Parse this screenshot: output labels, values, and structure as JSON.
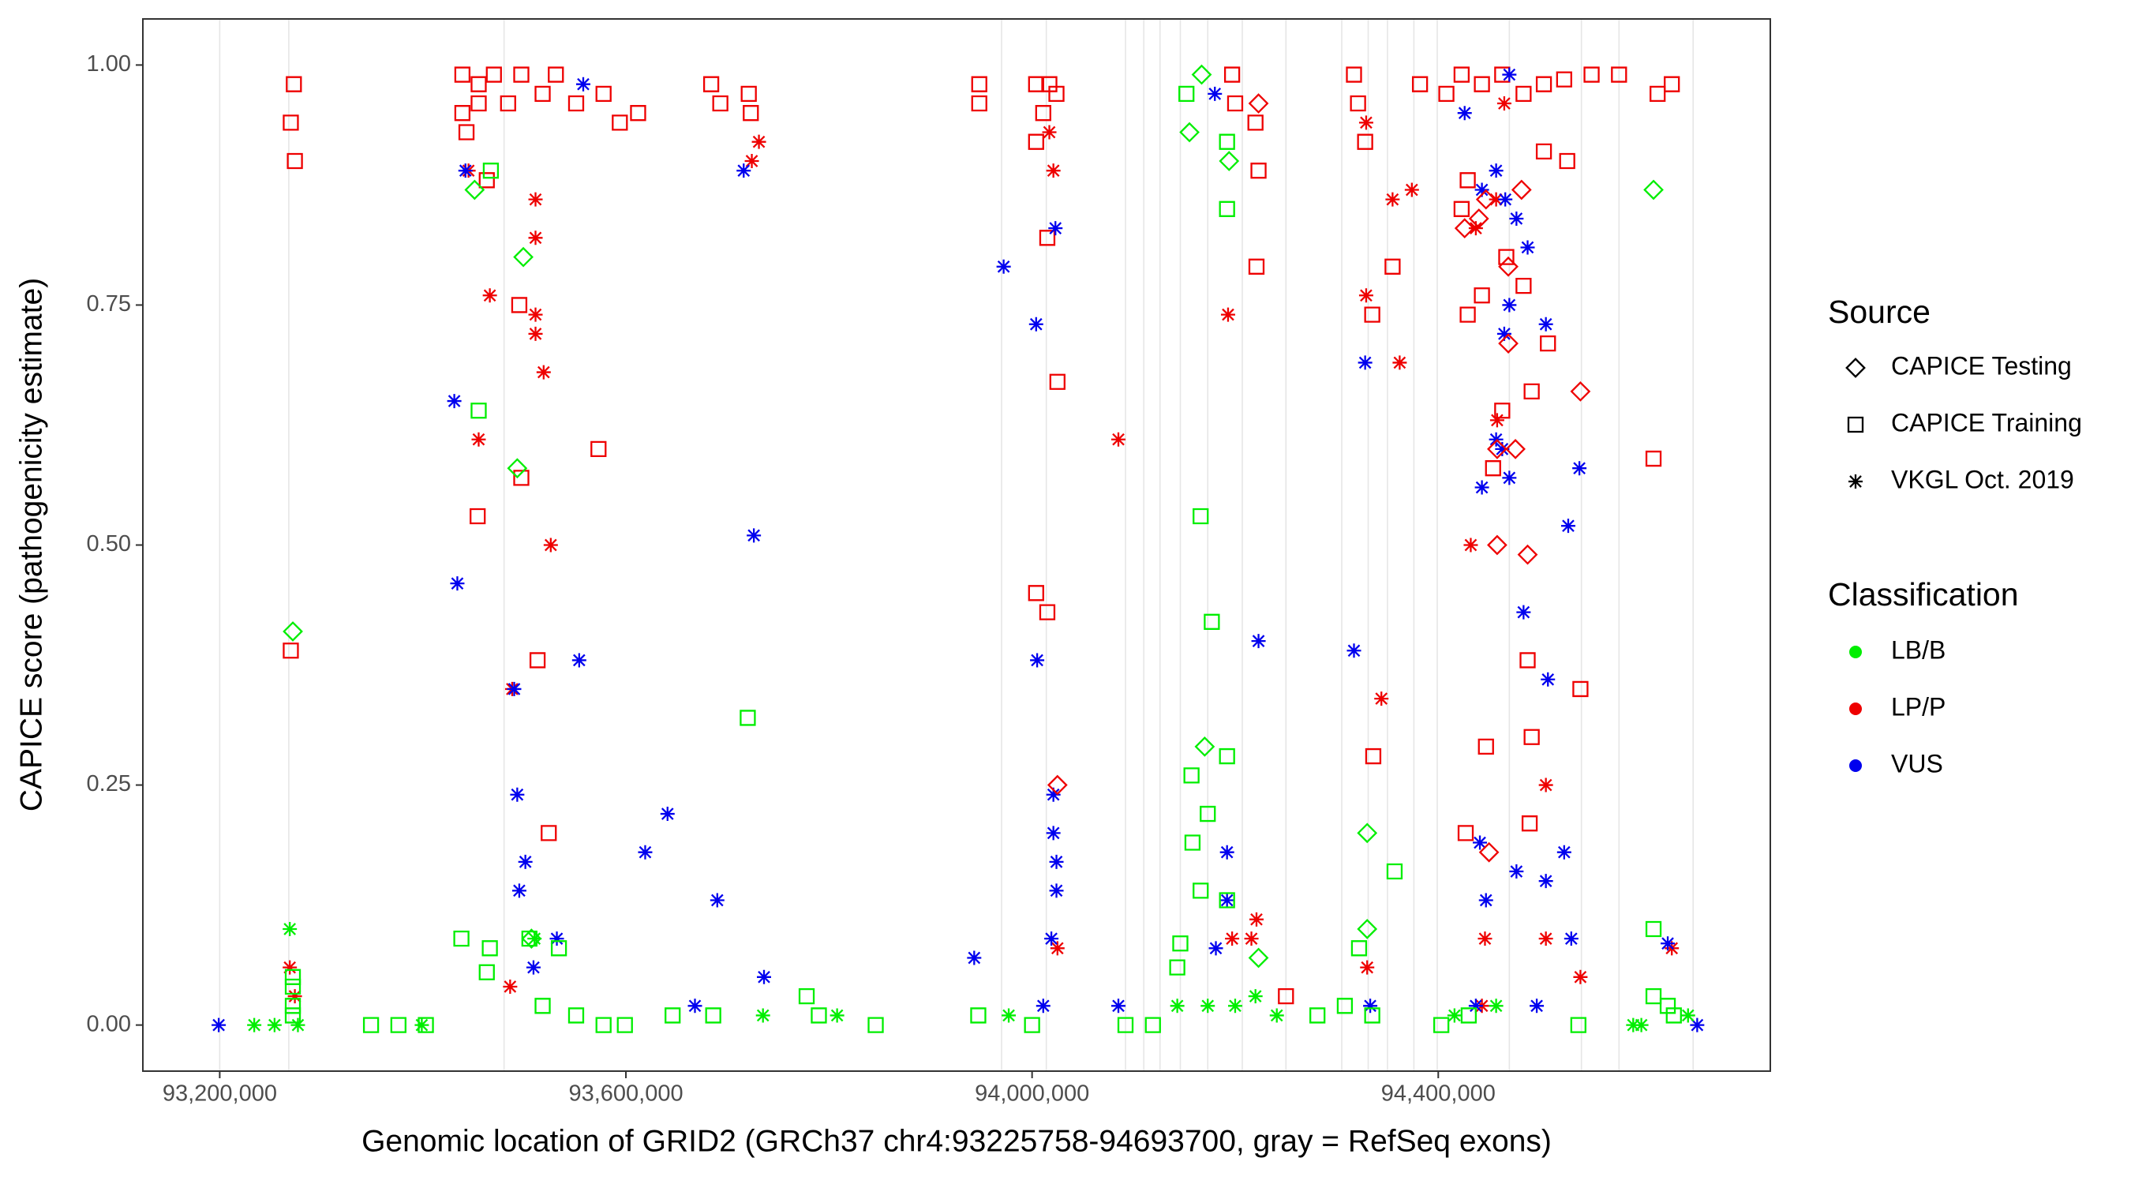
{
  "chart_data": {
    "type": "scatter",
    "x_label": "Genomic location of GRID2 (GRCh37 chr4:93225758-94693700, gray = RefSeq exons)",
    "y_label": "CAPICE score (pathogenicity estimate)",
    "xlim": [
      93124300,
      94727000
    ],
    "ylim": [
      -0.048,
      1.048
    ],
    "xticks": [
      {
        "value": 93200000,
        "label": "93,200,000"
      },
      {
        "value": 93600000,
        "label": "93,600,000"
      },
      {
        "value": 94000000,
        "label": "94,000,000"
      },
      {
        "value": 94400000,
        "label": "94,400,000"
      }
    ],
    "yticks": [
      {
        "value": 0,
        "label": "0.00"
      },
      0.25,
      {
        "value": 0.5,
        "label": "0.50"
      },
      0.75,
      {
        "value": 1,
        "label": "1.00"
      }
    ],
    "exon_color": "#e6e6e6",
    "exons": [
      93200000,
      93268000,
      93480000,
      93970000,
      94014000,
      94092000,
      94110000,
      94126000,
      94146000,
      94173000,
      94207000,
      94250000,
      94305000,
      94331000,
      94350000,
      94376000,
      94399000,
      94470000,
      94541000,
      94578000,
      94651000
    ],
    "legend_position": "right",
    "legend": {
      "shape": {
        "title": "Source",
        "items": [
          {
            "name": "CAPICE Testing",
            "shape": "diamond"
          },
          {
            "name": "CAPICE Training",
            "shape": "square"
          },
          {
            "name": "VKGL Oct. 2019",
            "shape": "asterisk"
          }
        ]
      },
      "color": {
        "title": "Classification",
        "items": [
          {
            "name": "LB/B",
            "color": "#00ee00"
          },
          {
            "name": "LP/P",
            "color": "#ee0000"
          },
          {
            "name": "VUS",
            "color": "#0000ee"
          }
        ]
      }
    },
    "series": [
      {
        "source": "CAPICE Training",
        "classification": "LP/P",
        "x": [
          93273000,
          93270000,
          93274000,
          93270000,
          93439000,
          93455000,
          93470000,
          93497000,
          93531000,
          93439000,
          93455000,
          93484000,
          93518000,
          93551000,
          93578000,
          93612000,
          93443000,
          93463000,
          93495000,
          93497000,
          93454000,
          93573000,
          93513000,
          93524000,
          93684000,
          93693000,
          93721000,
          93723000,
          93594000,
          93948000,
          93948000,
          94004000,
          94017000,
          94004000,
          94011000,
          94024000,
          94004000,
          94015000,
          94025000,
          94015000,
          94197000,
          94200000,
          94220000,
          94223000,
          94221000,
          94317000,
          94321000,
          94328000,
          94355000,
          94336000,
          94335000,
          94382000,
          94408000,
          94423000,
          94443000,
          94463000,
          94484000,
          94504000,
          94524000,
          94551000,
          94578000,
          94429000,
          94423000,
          94429000,
          94443000,
          94463000,
          94454000,
          94467000,
          94484000,
          94492000,
          94488000,
          94492000,
          94508000,
          94504000,
          94527000,
          94540000,
          94490000,
          94427000,
          94447000,
          94612000,
          94616000,
          94630000,
          94250000
        ],
        "values": [
          0.98,
          0.94,
          0.9,
          0.39,
          0.99,
          0.98,
          0.99,
          0.99,
          0.99,
          0.95,
          0.96,
          0.96,
          0.97,
          0.96,
          0.97,
          0.95,
          0.93,
          0.88,
          0.75,
          0.57,
          0.53,
          0.6,
          0.38,
          0.2,
          0.98,
          0.96,
          0.97,
          0.95,
          0.94,
          0.98,
          0.96,
          0.98,
          0.98,
          0.92,
          0.95,
          0.97,
          0.45,
          0.43,
          0.67,
          0.82,
          0.99,
          0.96,
          0.94,
          0.89,
          0.79,
          0.99,
          0.96,
          0.92,
          0.79,
          0.28,
          0.74,
          0.98,
          0.97,
          0.99,
          0.98,
          0.99,
          0.97,
          0.98,
          0.985,
          0.99,
          0.99,
          0.88,
          0.85,
          0.74,
          0.76,
          0.64,
          0.58,
          0.8,
          0.77,
          0.66,
          0.38,
          0.3,
          0.71,
          0.91,
          0.9,
          0.35,
          0.21,
          0.2,
          0.29,
          0.59,
          0.97,
          0.98,
          0.03
        ]
      },
      {
        "source": "VKGL Oct. 2019",
        "classification": "LP/P",
        "x": [
          93269000,
          93274000,
          93445000,
          93455000,
          93466000,
          93488000,
          93511000,
          93511000,
          93511000,
          93511000,
          93519000,
          93526000,
          93486000,
          93724000,
          93731000,
          94085000,
          94017000,
          94021000,
          94025000,
          94193000,
          94197000,
          94216000,
          94221000,
          94329000,
          94329000,
          94330000,
          94344000,
          94355000,
          94374000,
          94362000,
          94432000,
          94437000,
          94446000,
          94458000,
          94506000,
          94506000,
          94540000,
          94630000,
          94457000,
          94443000,
          94465000
        ],
        "values": [
          0.06,
          0.03,
          0.89,
          0.61,
          0.76,
          0.35,
          0.86,
          0.82,
          0.74,
          0.72,
          0.68,
          0.5,
          0.04,
          0.9,
          0.92,
          0.61,
          0.93,
          0.89,
          0.08,
          0.74,
          0.09,
          0.09,
          0.11,
          0.94,
          0.76,
          0.06,
          0.34,
          0.86,
          0.87,
          0.69,
          0.5,
          0.83,
          0.09,
          0.63,
          0.25,
          0.09,
          0.05,
          0.08,
          0.86,
          0.02,
          0.96
        ]
      },
      {
        "source": "VKGL Oct. 2019",
        "classification": "VUS",
        "x": [
          93199000,
          93431000,
          93434000,
          93442000,
          93490000,
          93493000,
          93501000,
          93495000,
          93509000,
          93532000,
          93554000,
          93558000,
          93619000,
          93641000,
          93690000,
          93716000,
          93726000,
          93736000,
          93668000,
          93943000,
          93972000,
          94004000,
          94005000,
          94023000,
          94021000,
          94021000,
          94024000,
          94024000,
          94019000,
          94011000,
          94085000,
          94180000,
          94192000,
          94192000,
          94181000,
          94223000,
          94317000,
          94328000,
          94333000,
          94441000,
          94443000,
          94457000,
          94466000,
          94457000,
          94463000,
          94470000,
          94443000,
          94465000,
          94470000,
          94477000,
          94488000,
          94506000,
          94539000,
          94528000,
          94484000,
          94508000,
          94524000,
          94506000,
          94531000,
          94447000,
          94477000,
          94426000,
          94470000,
          94655000,
          94626000,
          94437000,
          94497000
        ],
        "values": [
          0,
          0.65,
          0.46,
          0.89,
          0.35,
          0.24,
          0.17,
          0.14,
          0.06,
          0.09,
          0.38,
          0.98,
          0.18,
          0.22,
          0.13,
          0.89,
          0.51,
          0.05,
          0.02,
          0.07,
          0.79,
          0.73,
          0.38,
          0.83,
          0.24,
          0.2,
          0.17,
          0.14,
          0.09,
          0.02,
          0.02,
          0.97,
          0.18,
          0.13,
          0.08,
          0.4,
          0.39,
          0.69,
          0.02,
          0.19,
          0.87,
          0.89,
          0.86,
          0.61,
          0.6,
          0.57,
          0.56,
          0.72,
          0.75,
          0.84,
          0.81,
          0.73,
          0.58,
          0.52,
          0.43,
          0.36,
          0.18,
          0.15,
          0.09,
          0.13,
          0.16,
          0.95,
          0.99,
          0,
          0.085,
          0.02,
          0.02
        ]
      },
      {
        "source": "CAPICE Training",
        "classification": "LB/B",
        "x": [
          93467000,
          93455000,
          93438000,
          93272000,
          93272000,
          93272000,
          93272000,
          93720000,
          93778000,
          93790000,
          93846000,
          93463000,
          93466000,
          93505000,
          93534000,
          93518000,
          93551000,
          93578000,
          93376000,
          93403000,
          93646000,
          93686000,
          94166000,
          94177000,
          94157000,
          94173000,
          94158000,
          94166000,
          94146000,
          94143000,
          94192000,
          94192000,
          94192000,
          94152000,
          94192000,
          94322000,
          94357000,
          94612000,
          94612000,
          94626000,
          94632000,
          94281000,
          94308000,
          94335000,
          94403000,
          94430000,
          94538000,
          94119000,
          94092000,
          94000000,
          93947000,
          93599000,
          93349000
        ],
        "values": [
          0.89,
          0.64,
          0.09,
          0.05,
          0.04,
          0.02,
          0.01,
          0.32,
          0.03,
          0.01,
          0,
          0.055,
          0.08,
          0.09,
          0.08,
          0.02,
          0.01,
          0,
          0,
          0,
          0.01,
          0.01,
          0.53,
          0.42,
          0.26,
          0.22,
          0.19,
          0.14,
          0.085,
          0.06,
          0.92,
          0.85,
          0.28,
          0.97,
          0.13,
          0.08,
          0.16,
          0.1,
          0.03,
          0.02,
          0.01,
          0.01,
          0.02,
          0.01,
          0,
          0.01,
          0,
          0,
          0,
          0,
          0.01,
          0,
          0
        ]
      },
      {
        "source": "CAPICE Testing",
        "classification": "LB/B",
        "x": [
          93272000,
          93451000,
          93499000,
          93493000,
          93507000,
          94167000,
          94155000,
          94194000,
          94170000,
          94330000,
          94330000,
          94612000,
          94223000
        ],
        "values": [
          0.41,
          0.87,
          0.8,
          0.58,
          0.09,
          0.99,
          0.93,
          0.9,
          0.29,
          0.2,
          0.1,
          0.87,
          0.07
        ]
      },
      {
        "source": "CAPICE Testing",
        "classification": "LP/P",
        "x": [
          94426000,
          94440000,
          94469000,
          94482000,
          94469000,
          94458000,
          94476000,
          94458000,
          94488000,
          94450000,
          94540000,
          94025000,
          94223000,
          94447000
        ],
        "values": [
          0.83,
          0.84,
          0.79,
          0.87,
          0.71,
          0.6,
          0.6,
          0.5,
          0.49,
          0.18,
          0.66,
          0.25,
          0.96,
          0.86
        ]
      },
      {
        "source": "VKGL Oct. 2019",
        "classification": "LB/B",
        "x": [
          93269000,
          93234000,
          93254000,
          93277000,
          93399000,
          93510000,
          93808000,
          93735000,
          93977000,
          94200000,
          94173000,
          94241000,
          94416000,
          94592000,
          94600000,
          94646000,
          94457000,
          94220000,
          94143000
        ],
        "values": [
          0.1,
          0,
          0,
          0,
          0,
          0.09,
          0.01,
          0.01,
          0.01,
          0.02,
          0.02,
          0.01,
          0.01,
          0,
          0,
          0.01,
          0.02,
          0.03,
          0.02
        ]
      }
    ]
  }
}
